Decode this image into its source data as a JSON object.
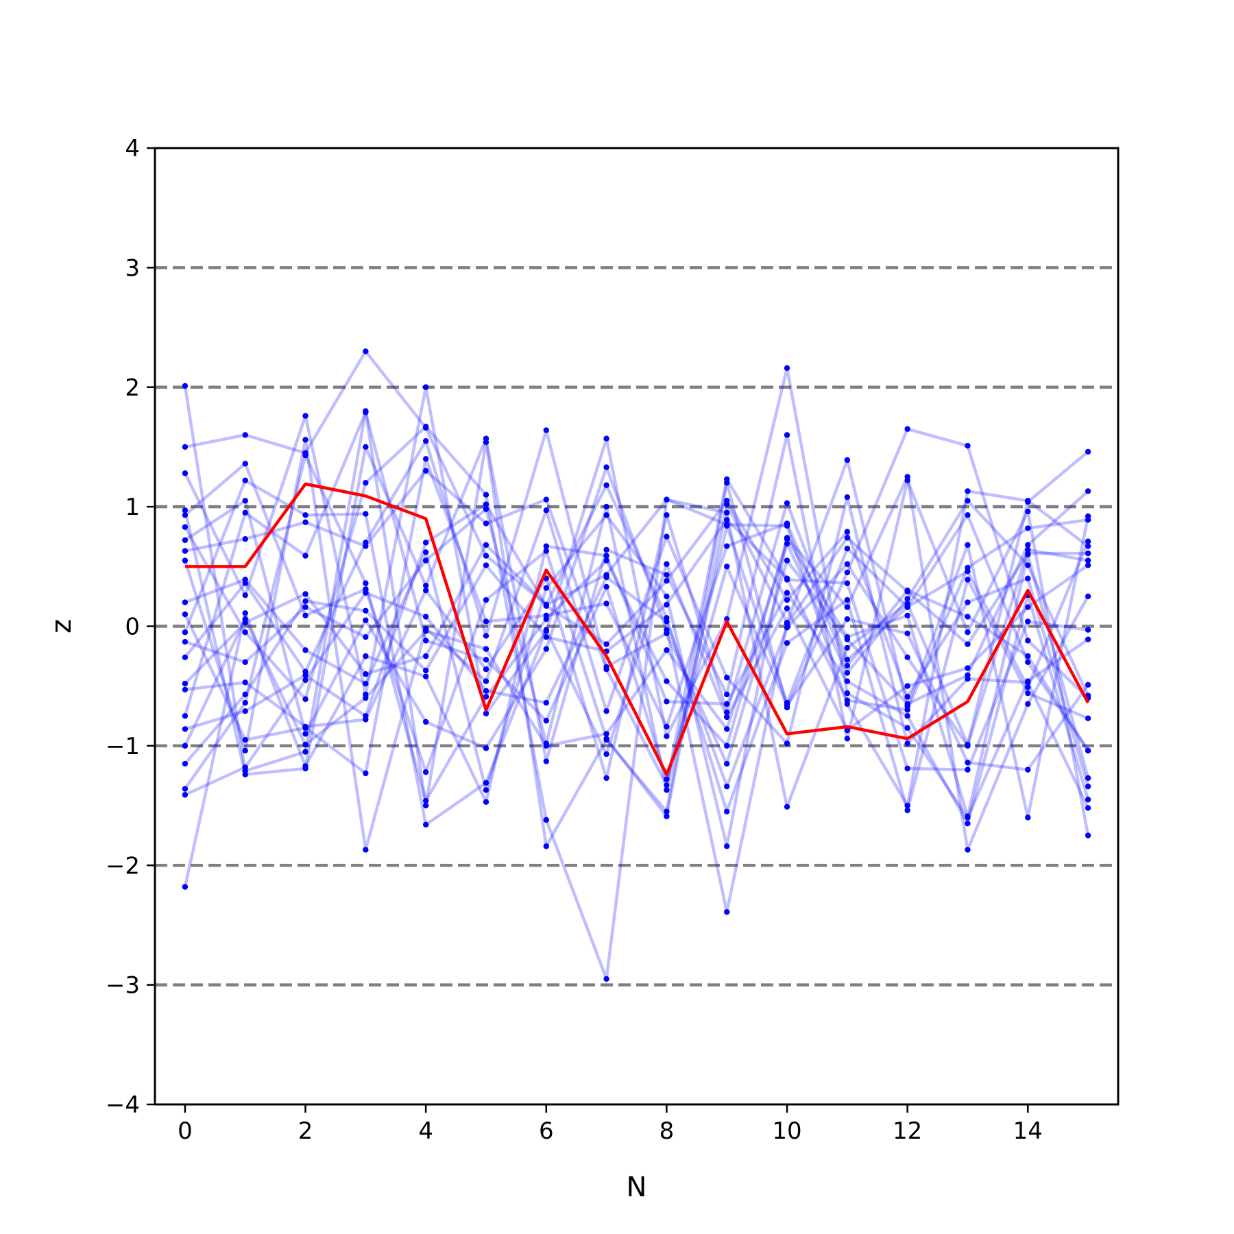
{
  "chart_data": {
    "type": "line",
    "title": "",
    "xlabel": "N",
    "ylabel": "z",
    "xlim": [
      -0.5,
      15.5
    ],
    "ylim": [
      -4,
      4
    ],
    "xticks": [
      0,
      2,
      4,
      6,
      8,
      10,
      12,
      14
    ],
    "xtick_labels": [
      "0",
      "2",
      "4",
      "6",
      "8",
      "10",
      "12",
      "14"
    ],
    "yticks": [
      -4,
      -3,
      -2,
      -1,
      0,
      1,
      2,
      3,
      4
    ],
    "ytick_labels": [
      "−4",
      "−3",
      "−2",
      "−1",
      "0",
      "1",
      "2",
      "3",
      "4"
    ],
    "reference_lines": [
      -3,
      -2,
      -1,
      0,
      1,
      2,
      3
    ],
    "reference_line_color": "#808080",
    "grid": false,
    "legend": "none",
    "x": [
      0,
      1,
      2,
      3,
      4,
      5,
      6,
      7,
      8,
      9,
      10,
      11,
      12,
      13,
      14,
      15
    ],
    "highlight_series": {
      "color": "#ff0000",
      "values": [
        0.5,
        0.5,
        1.19,
        1.09,
        0.9,
        -0.7,
        0.47,
        -0.25,
        -1.24,
        0.04,
        -0.9,
        -0.84,
        -0.94,
        -0.63,
        0.3,
        -0.64
      ]
    },
    "sample_series_color": "#0000ff",
    "series": [
      {
        "values": [
          2.01,
          -1.21,
          -1.05,
          1.8,
          -1.5,
          1.54,
          -1.84,
          -0.95,
          -1.55,
          1.2,
          -0.68,
          0.45,
          1.65,
          1.51,
          -0.12,
          -0.6
        ]
      },
      {
        "values": [
          1.5,
          1.6,
          1.45,
          2.3,
          1.66,
          0.59,
          0.18,
          0.43,
          1.06,
          0.85,
          0.84,
          -0.65,
          -1.5,
          1.13,
          1.05,
          0.67
        ]
      },
      {
        "values": [
          1.28,
          0.26,
          1.76,
          -0.57,
          2.0,
          -0.73,
          -0.04,
          1.57,
          -0.92,
          0.06,
          2.16,
          -0.56,
          -0.85,
          -1.6,
          -0.46,
          -0.11
        ]
      },
      {
        "values": [
          0.97,
          -1.24,
          -1.19,
          1.5,
          0.34,
          1.57,
          -1.13,
          0.64,
          0.43,
          -0.57,
          1.6,
          -0.94,
          1.22,
          -0.05,
          0.96,
          -1.75
        ]
      },
      {
        "values": [
          0.93,
          1.36,
          0.09,
          0.31,
          -1.22,
          0.22,
          0.63,
          -0.94,
          -1.59,
          1.02,
          0.03,
          1.39,
          -0.67,
          0.68,
          -1.6,
          0.92
        ]
      },
      {
        "values": [
          0.83,
          -0.05,
          -0.61,
          1.2,
          1.67,
          1.1,
          -1.62,
          -2.95,
          1.06,
          0.95,
          -1.51,
          -0.18,
          0.19,
          -0.99,
          1.04,
          1.46
        ]
      },
      {
        "values": [
          0.72,
          1.05,
          -0.9,
          0.05,
          -0.8,
          -1.02,
          -0.19,
          1.33,
          -0.03,
          -2.39,
          0.02,
          0.74,
          0.29,
          -0.15,
          0.61,
          0.61
        ]
      },
      {
        "values": [
          0.63,
          0.73,
          0.87,
          0.67,
          1.3,
          0.86,
          1.06,
          -0.36,
          -1.33,
          1.23,
          0.39,
          0.36,
          -1.19,
          -1.2,
          0.04,
          -0.03
        ]
      },
      {
        "values": [
          0.55,
          -1.04,
          1.56,
          -1.87,
          -0.02,
          -0.46,
          0.97,
          -0.71,
          0.75,
          -0.43,
          -0.98,
          1.08,
          -0.98,
          -0.44,
          -0.47,
          -1.52
        ]
      },
      {
        "values": [
          0.2,
          0.39,
          -0.2,
          -0.48,
          0.62,
          -1.37,
          0.32,
          0.93,
          0.25,
          -1.84,
          0.74,
          0.16,
          1.25,
          -1.87,
          -0.65,
          0.25
        ]
      },
      {
        "values": [
          0.1,
          -0.95,
          -0.85,
          -1.23,
          1.4,
          0.04,
          0.09,
          0.19,
          -0.84,
          0.67,
          0.86,
          -0.33,
          0.3,
          0.08,
          -0.25,
          -1.04
        ]
      },
      {
        "values": [
          -0.05,
          1.22,
          0.93,
          0.94,
          -1.66,
          -1.31,
          -0.03,
          -1.07,
          0.52,
          -0.76,
          0.15,
          -0.87,
          -0.5,
          -0.35,
          0.16,
          0.51
        ]
      },
      {
        "values": [
          -0.13,
          -0.3,
          0.16,
          -0.09,
          0.55,
          0.98,
          -0.98,
          1.0,
          -1.37,
          0.84,
          -0.64,
          0.65,
          0.16,
          0.93,
          -0.3,
          -1.04
        ]
      },
      {
        "values": [
          -0.26,
          0.36,
          -0.38,
          0.7,
          1.55,
          -0.08,
          1.64,
          -0.34,
          -0.06,
          -1.15,
          0.55,
          -0.11,
          -0.65,
          -0.41,
          0.68,
          1.13
        ]
      },
      {
        "values": [
          -0.48,
          0.03,
          0.27,
          -0.4,
          -0.25,
          0.68,
          0.18,
          1.18,
          0.07,
          -1.55,
          -0.14,
          0.22,
          -1.54,
          0.39,
          -0.56,
          -0.77
        ]
      },
      {
        "values": [
          -0.53,
          -0.47,
          -0.84,
          -0.78,
          0.3,
          -0.36,
          0.4,
          -1.27,
          0.93,
          -0.72,
          1.03,
          -0.28,
          0.16,
          0.46,
          -0.51,
          0.71
        ]
      },
      {
        "values": [
          -0.75,
          0.95,
          0.59,
          1.79,
          -0.12,
          -0.28,
          -0.79,
          0.33,
          -1.28,
          0.5,
          -0.66,
          0.06,
          -0.06,
          -1.14,
          -1.2,
          -0.49
        ]
      },
      {
        "values": [
          -0.86,
          -0.71,
          -0.41,
          -0.75,
          0.7,
          1.02,
          0.17,
          -0.15,
          0.38,
          1.05,
          0.22,
          0.79,
          -0.59,
          0.2,
          0.4,
          -1.34
        ]
      },
      {
        "values": [
          -1.0,
          0.06,
          -0.99,
          -0.6,
          -0.04,
          -0.19,
          -1.0,
          -0.9,
          -0.2,
          -0.86,
          0.69,
          -0.39,
          0.23,
          1.05,
          0.51,
          -0.58
        ]
      },
      {
        "values": [
          -1.15,
          -0.57,
          0.21,
          0.13,
          -0.37,
          0.51,
          -0.09,
          -0.21,
          0.18,
          0.89,
          0.4,
          -0.62,
          -0.7,
          0.49,
          0.82,
          0.89
        ]
      },
      {
        "values": [
          -1.36,
          -0.64,
          1.43,
          0.36,
          -1.46,
          -0.59,
          0.06,
          0.55,
          -0.46,
          -1.0,
          0.73,
          -0.09,
          0.09,
          -1.59,
          0.6,
          -1.27
        ]
      },
      {
        "values": [
          -1.41,
          -1.18,
          -0.45,
          0.28,
          0.08,
          -0.54,
          -0.64,
          0.41,
          0.04,
          -1.34,
          -0.01,
          0.52,
          -0.26,
          -1.0,
          0.64,
          0.55
        ]
      },
      {
        "values": [
          -2.18,
          0.11,
          -1.17,
          -0.25,
          -0.42,
          -1.47,
          0.67,
          0.59,
          -0.63,
          -0.65,
          0.28,
          -0.46,
          -0.75,
          -1.65,
          0.26,
          -1.45
        ]
      }
    ]
  }
}
